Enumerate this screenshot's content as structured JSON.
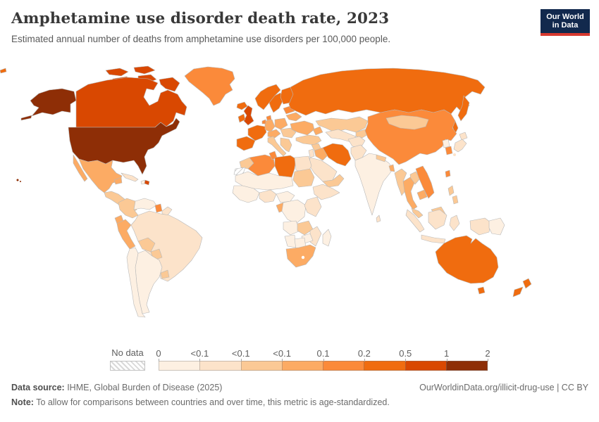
{
  "header": {
    "title": "Amphetamine use disorder death rate, 2023",
    "subtitle": "Estimated annual number of deaths from amphetamine use disorders per 100,000 people.",
    "logo_line1": "Our World",
    "logo_line2": "in Data",
    "logo_bg": "#12294d",
    "logo_stripe": "#d7392f"
  },
  "legend": {
    "no_data_label": "No data",
    "tick_labels": [
      "0",
      "<0.1",
      "<0.1",
      "<0.1",
      "0.1",
      "0.2",
      "0.5",
      "1",
      "2"
    ],
    "bin_colors": [
      "#fdf0e2",
      "#fce3ca",
      "#fbc995",
      "#fcab64",
      "#fb8a3a",
      "#f06c0f",
      "#d94801",
      "#8e2e06"
    ]
  },
  "footer": {
    "source_label": "Data source:",
    "source_text": " IHME, Global Burden of Disease (2025)",
    "right_text": "OurWorldinData.org/illicit-drug-use | CC BY",
    "note_label": "Note:",
    "note_text": " To allow for comparisons between countries and over time, this metric is age-standardized."
  },
  "chart_data": {
    "type": "choropleth-map",
    "title": "Amphetamine use disorder death rate, 2023",
    "unit": "deaths per 100,000 people",
    "legend_bins": [
      "0",
      "<0.1",
      "<0.1",
      "<0.1",
      "0.1",
      "0.2",
      "0.5",
      "1",
      "2"
    ],
    "notes": "values below are bin indices 0-7 into legend.bin_colors; 'no-data' = hatched"
  },
  "map": {
    "regions": {
      "russia-wrap": 5,
      "greenland": 4,
      "iceland": 5,
      "alaska": 7,
      "canada": 6,
      "canada-arctic": 6,
      "usa": 7,
      "hawaii": 7,
      "mexico": 3,
      "central-america": 2,
      "costa-rica": 4,
      "cuba": 1,
      "haiti": 0,
      "dominican-republic": 6,
      "colombia": 2,
      "venezuela": 0,
      "guyana": 4,
      "suriname": 1,
      "ecuador": 3,
      "peru": 3,
      "brazil": 1,
      "bolivia": 2,
      "paraguay": 2,
      "uruguay": 2,
      "chile": 0,
      "argentina": 0,
      "norway": 5,
      "sweden": 5,
      "finland": 5,
      "denmark": 4,
      "uk": 6,
      "ireland": 5,
      "france": 5,
      "iberia": 5,
      "germany": 3,
      "benelux": 4,
      "poland": 3,
      "central-europe": 3,
      "italy": 2,
      "balkans": 2,
      "romania-hungary": 2,
      "ukraine": 3,
      "belarus": 3,
      "baltics": 4,
      "russia": 5,
      "kazakhstan": 2,
      "uzbekistan-turkmenistan": 1,
      "kyrgyzstan-tajikistan": 2,
      "caucasus": 3,
      "turkey": 2,
      "syria": 2,
      "iraq": 3,
      "iran": 5,
      "saudi-arabia": 1,
      "yemen-oman": 2,
      "levant": 1,
      "afghanistan": 1,
      "pakistan": 1,
      "india": 0,
      "sri-lanka": 1,
      "nepal": 2,
      "bangladesh": 3,
      "china": 4,
      "mongolia": 2,
      "north-korea": 0,
      "south-korea": 4,
      "japan": 1,
      "taiwan": 4,
      "myanmar": 2,
      "thailand": 3,
      "laos": 2,
      "vietnam": 4,
      "cambodia": 3,
      "malaysia": 2,
      "indonesia": 1,
      "philippines": 2,
      "new-guinea-west": 1,
      "papua-new-guinea": 0,
      "australia": 5,
      "new-zealand": 5,
      "morocco": 2,
      "western-sahara": "no-data",
      "algeria": 4,
      "tunisia": 4,
      "libya": 5,
      "egypt": 1,
      "sahel": 0,
      "sudan": 2,
      "west-africa": 0,
      "nigeria": 1,
      "central-africa": 0,
      "horn-of-africa": 1,
      "gabon": 3,
      "dr-congo": 0,
      "east-africa": 1,
      "angola": 0,
      "zambia": 2,
      "mozambique": 1,
      "zimbabwe": 0,
      "namibia": 0,
      "botswana": 0,
      "south-africa": 3,
      "madagascar": 0
    }
  }
}
